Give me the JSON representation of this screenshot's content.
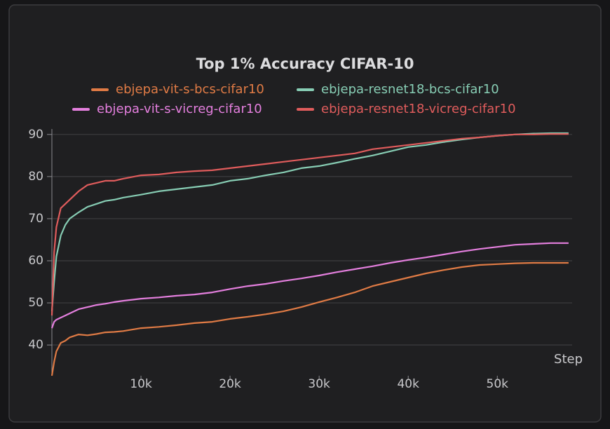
{
  "chart_data": {
    "type": "line",
    "title": "Top 1% Accuracy CIFAR-10",
    "x_label": "Step",
    "x": [
      0,
      250,
      500,
      1000,
      1500,
      2000,
      3000,
      4000,
      5000,
      6000,
      7000,
      8000,
      10000,
      12000,
      14000,
      16000,
      18000,
      20000,
      22000,
      24000,
      26000,
      28000,
      30000,
      32000,
      34000,
      36000,
      38000,
      40000,
      42000,
      44000,
      46000,
      48000,
      50000,
      52000,
      54000,
      56000,
      58000
    ],
    "series": [
      {
        "name": "ebjepa-vit-s-bcs-cifar10",
        "color": "#e07b45",
        "values": [
          32.7,
          36,
          38.5,
          40.5,
          41,
          41.8,
          42.5,
          42.3,
          42.6,
          43,
          43.1,
          43.3,
          44,
          44.3,
          44.7,
          45.2,
          45.5,
          46.2,
          46.7,
          47.3,
          48,
          49,
          50.2,
          51.3,
          52.5,
          54,
          55,
          56,
          57,
          57.8,
          58.5,
          59,
          59.2,
          59.4,
          59.5,
          59.5,
          59.5
        ]
      },
      {
        "name": "ebjepa-resnet18-bcs-cifar10",
        "color": "#87cdb4",
        "values": [
          48,
          55,
          61,
          66,
          68.5,
          70,
          71.5,
          72.8,
          73.5,
          74.2,
          74.5,
          75,
          75.7,
          76.5,
          77,
          77.5,
          78,
          79,
          79.5,
          80.3,
          81,
          82,
          82.5,
          83.3,
          84.2,
          85,
          86,
          87,
          87.5,
          88.2,
          88.8,
          89.3,
          89.7,
          90,
          90.2,
          90.3,
          90.3
        ]
      },
      {
        "name": "ebjepa-vit-s-vicreg-cifar10",
        "color": "#e47fde",
        "values": [
          44,
          45.5,
          46,
          46.5,
          47,
          47.5,
          48.5,
          49,
          49.5,
          49.8,
          50.2,
          50.5,
          51,
          51.3,
          51.7,
          52,
          52.5,
          53.3,
          54,
          54.5,
          55.2,
          55.8,
          56.5,
          57.3,
          58,
          58.7,
          59.5,
          60.2,
          60.8,
          61.5,
          62.2,
          62.8,
          63.3,
          63.8,
          64,
          64.2,
          64.2
        ]
      },
      {
        "name": "ebjepa-resnet18-vicreg-cifar10",
        "color": "#e05c5c",
        "values": [
          47,
          62,
          68,
          72.5,
          73.5,
          74.5,
          76.5,
          78,
          78.5,
          79,
          79,
          79.5,
          80.3,
          80.5,
          81,
          81.3,
          81.5,
          82,
          82.5,
          83,
          83.5,
          84,
          84.5,
          85,
          85.5,
          86.5,
          87,
          87.5,
          88,
          88.5,
          89,
          89.3,
          89.7,
          90,
          90,
          90.1,
          90.1
        ]
      }
    ],
    "xlim": [
      0,
      58400
    ],
    "ylim": [
      32.7,
      90.3
    ],
    "xticks": [
      {
        "value": 10000,
        "label": "10k"
      },
      {
        "value": 20000,
        "label": "20k"
      },
      {
        "value": 30000,
        "label": "30k"
      },
      {
        "value": 40000,
        "label": "40k"
      },
      {
        "value": 50000,
        "label": "50k"
      }
    ],
    "yticks": [
      40,
      50,
      60,
      70,
      80,
      90
    ],
    "grid": true
  }
}
